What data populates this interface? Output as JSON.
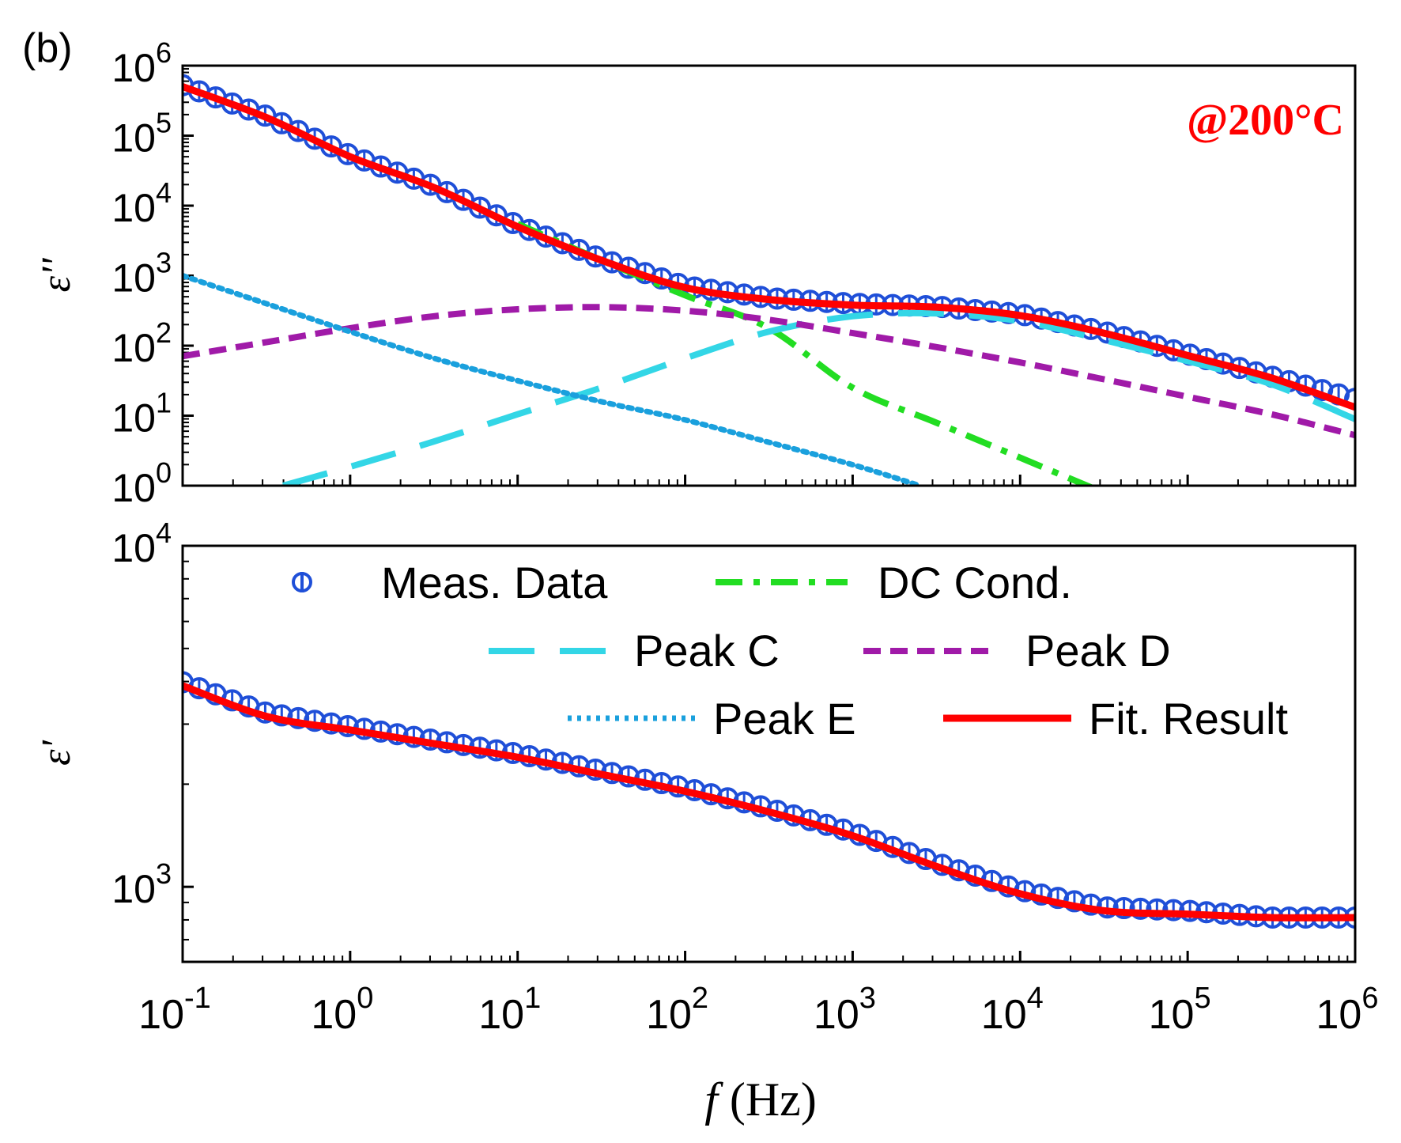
{
  "panel_label": "(b)",
  "annotation": {
    "text": "@200°C",
    "color": "#ff0000"
  },
  "x_axis": {
    "label_italic": "f",
    "label_rest": " (Hz)",
    "log_range": [
      -1,
      6
    ],
    "tick_mantissa": "10",
    "tick_exponents": [
      "-1",
      "0",
      "1",
      "2",
      "3",
      "4",
      "5",
      "6"
    ]
  },
  "colors": {
    "meas": "#1f4fd8",
    "dc": "#22dd22",
    "peakC": "#33d6e6",
    "peakD": "#a01aa8",
    "peakE": "#1aa0dd",
    "fit": "#ff0000"
  },
  "legend": {
    "meas": "Meas. Data",
    "dc": "DC Cond.",
    "peakC": "Peak C",
    "peakD": "Peak D",
    "peakE": "Peak E",
    "fit": "Fit. Result"
  },
  "chart_data": [
    {
      "type": "line",
      "title": "",
      "ylabel": "ε''",
      "xlabel": "",
      "x_scale": "log",
      "y_scale": "log",
      "x_log_range": [
        -1,
        6
      ],
      "y_log_range": [
        0,
        6
      ],
      "y_tick_mantissa": "10",
      "y_tick_exponents": [
        "0",
        "1",
        "2",
        "3",
        "4",
        "5",
        "6"
      ],
      "series": [
        {
          "name": "Meas. Data",
          "key": "meas",
          "style": "markers",
          "log_points": [
            [
              -1,
              5.72
            ],
            [
              -0.5,
              5.28
            ],
            [
              0,
              4.72
            ],
            [
              0.5,
              4.28
            ],
            [
              1,
              3.72
            ],
            [
              1.5,
              3.24
            ],
            [
              2,
              2.85
            ],
            [
              2.5,
              2.68
            ],
            [
              3,
              2.6
            ],
            [
              3.5,
              2.56
            ],
            [
              4,
              2.45
            ],
            [
              4.5,
              2.2
            ],
            [
              5,
              1.88
            ],
            [
              5.5,
              1.56
            ],
            [
              6,
              1.24
            ]
          ]
        },
        {
          "name": "DC Cond.",
          "key": "dc",
          "style": "dashdot",
          "log_points": [
            [
              1,
              3.74
            ],
            [
              1.5,
              3.22
            ],
            [
              2,
              2.72
            ],
            [
              2.5,
              2.25
            ],
            [
              3,
              1.4
            ],
            [
              3.5,
              0.9
            ],
            [
              4,
              0.4
            ],
            [
              4.5,
              -0.1
            ]
          ]
        },
        {
          "name": "Peak C",
          "key": "peakC",
          "style": "longdash",
          "log_points": [
            [
              -0.4,
              0
            ],
            [
              0,
              0.27
            ],
            [
              0.5,
              0.63
            ],
            [
              1,
              1.02
            ],
            [
              1.5,
              1.4
            ],
            [
              2,
              1.82
            ],
            [
              2.5,
              2.2
            ],
            [
              3,
              2.42
            ],
            [
              3.5,
              2.46
            ],
            [
              4,
              2.35
            ],
            [
              4.5,
              2.08
            ],
            [
              5,
              1.78
            ],
            [
              5.5,
              1.45
            ],
            [
              6,
              0.95
            ]
          ]
        },
        {
          "name": "Peak D",
          "key": "peakD",
          "style": "shortdash",
          "log_points": [
            [
              -1,
              1.85
            ],
            [
              -0.5,
              2.05
            ],
            [
              0,
              2.25
            ],
            [
              0.5,
              2.42
            ],
            [
              1,
              2.52
            ],
            [
              1.5,
              2.55
            ],
            [
              2,
              2.5
            ],
            [
              2.5,
              2.37
            ],
            [
              3,
              2.18
            ],
            [
              3.5,
              1.98
            ],
            [
              4,
              1.76
            ],
            [
              4.5,
              1.52
            ],
            [
              5,
              1.27
            ],
            [
              5.5,
              1.02
            ],
            [
              6,
              0.72
            ]
          ]
        },
        {
          "name": "Peak E",
          "key": "peakE",
          "style": "dotted",
          "log_points": [
            [
              -1,
              3
            ],
            [
              -0.5,
              2.6
            ],
            [
              0,
              2.2
            ],
            [
              0.5,
              1.82
            ],
            [
              1,
              1.5
            ],
            [
              1.5,
              1.2
            ],
            [
              2,
              0.94
            ],
            [
              2.5,
              0.62
            ],
            [
              3,
              0.3
            ],
            [
              3.4,
              0
            ]
          ]
        },
        {
          "name": "Fit. Result",
          "key": "fit",
          "style": "solid",
          "log_points": [
            [
              -1,
              5.7
            ],
            [
              -0.5,
              5.26
            ],
            [
              0,
              4.7
            ],
            [
              0.5,
              4.26
            ],
            [
              1,
              3.7
            ],
            [
              1.5,
              3.22
            ],
            [
              2,
              2.83
            ],
            [
              2.5,
              2.66
            ],
            [
              3,
              2.58
            ],
            [
              3.5,
              2.55
            ],
            [
              4,
              2.43
            ],
            [
              4.5,
              2.18
            ],
            [
              5,
              1.86
            ],
            [
              5.5,
              1.54
            ],
            [
              6,
              1.12
            ]
          ]
        }
      ]
    },
    {
      "type": "line",
      "title": "",
      "ylabel": "ε'",
      "xlabel": "f (Hz)",
      "x_scale": "log",
      "y_scale": "log",
      "x_log_range": [
        -1,
        6
      ],
      "y_log_range": [
        2.78,
        4
      ],
      "y_tick_mantissa": "10",
      "y_tick_exponents": [
        "3",
        "4"
      ],
      "series": [
        {
          "name": "Meas. Data",
          "key": "meas",
          "style": "markers",
          "log_points": [
            [
              -1,
              3.6
            ],
            [
              -0.5,
              3.51
            ],
            [
              0,
              3.47
            ],
            [
              0.5,
              3.43
            ],
            [
              1,
              3.39
            ],
            [
              1.5,
              3.34
            ],
            [
              2,
              3.29
            ],
            [
              2.5,
              3.23
            ],
            [
              3,
              3.16
            ],
            [
              3.5,
              3.07
            ],
            [
              4,
              2.99
            ],
            [
              4.5,
              2.94
            ],
            [
              5,
              2.93
            ],
            [
              5.5,
              2.91
            ],
            [
              6,
              2.91
            ]
          ]
        },
        {
          "name": "Fit. Result",
          "key": "fit",
          "style": "solid",
          "log_points": [
            [
              -1,
              3.59
            ],
            [
              -0.5,
              3.5
            ],
            [
              0,
              3.46
            ],
            [
              0.5,
              3.42
            ],
            [
              1,
              3.38
            ],
            [
              1.5,
              3.33
            ],
            [
              2,
              3.28
            ],
            [
              2.5,
              3.22
            ],
            [
              3,
              3.15
            ],
            [
              3.5,
              3.06
            ],
            [
              4,
              2.98
            ],
            [
              4.5,
              2.93
            ],
            [
              5,
              2.92
            ],
            [
              5.5,
              2.91
            ],
            [
              6,
              2.91
            ]
          ]
        }
      ]
    }
  ]
}
